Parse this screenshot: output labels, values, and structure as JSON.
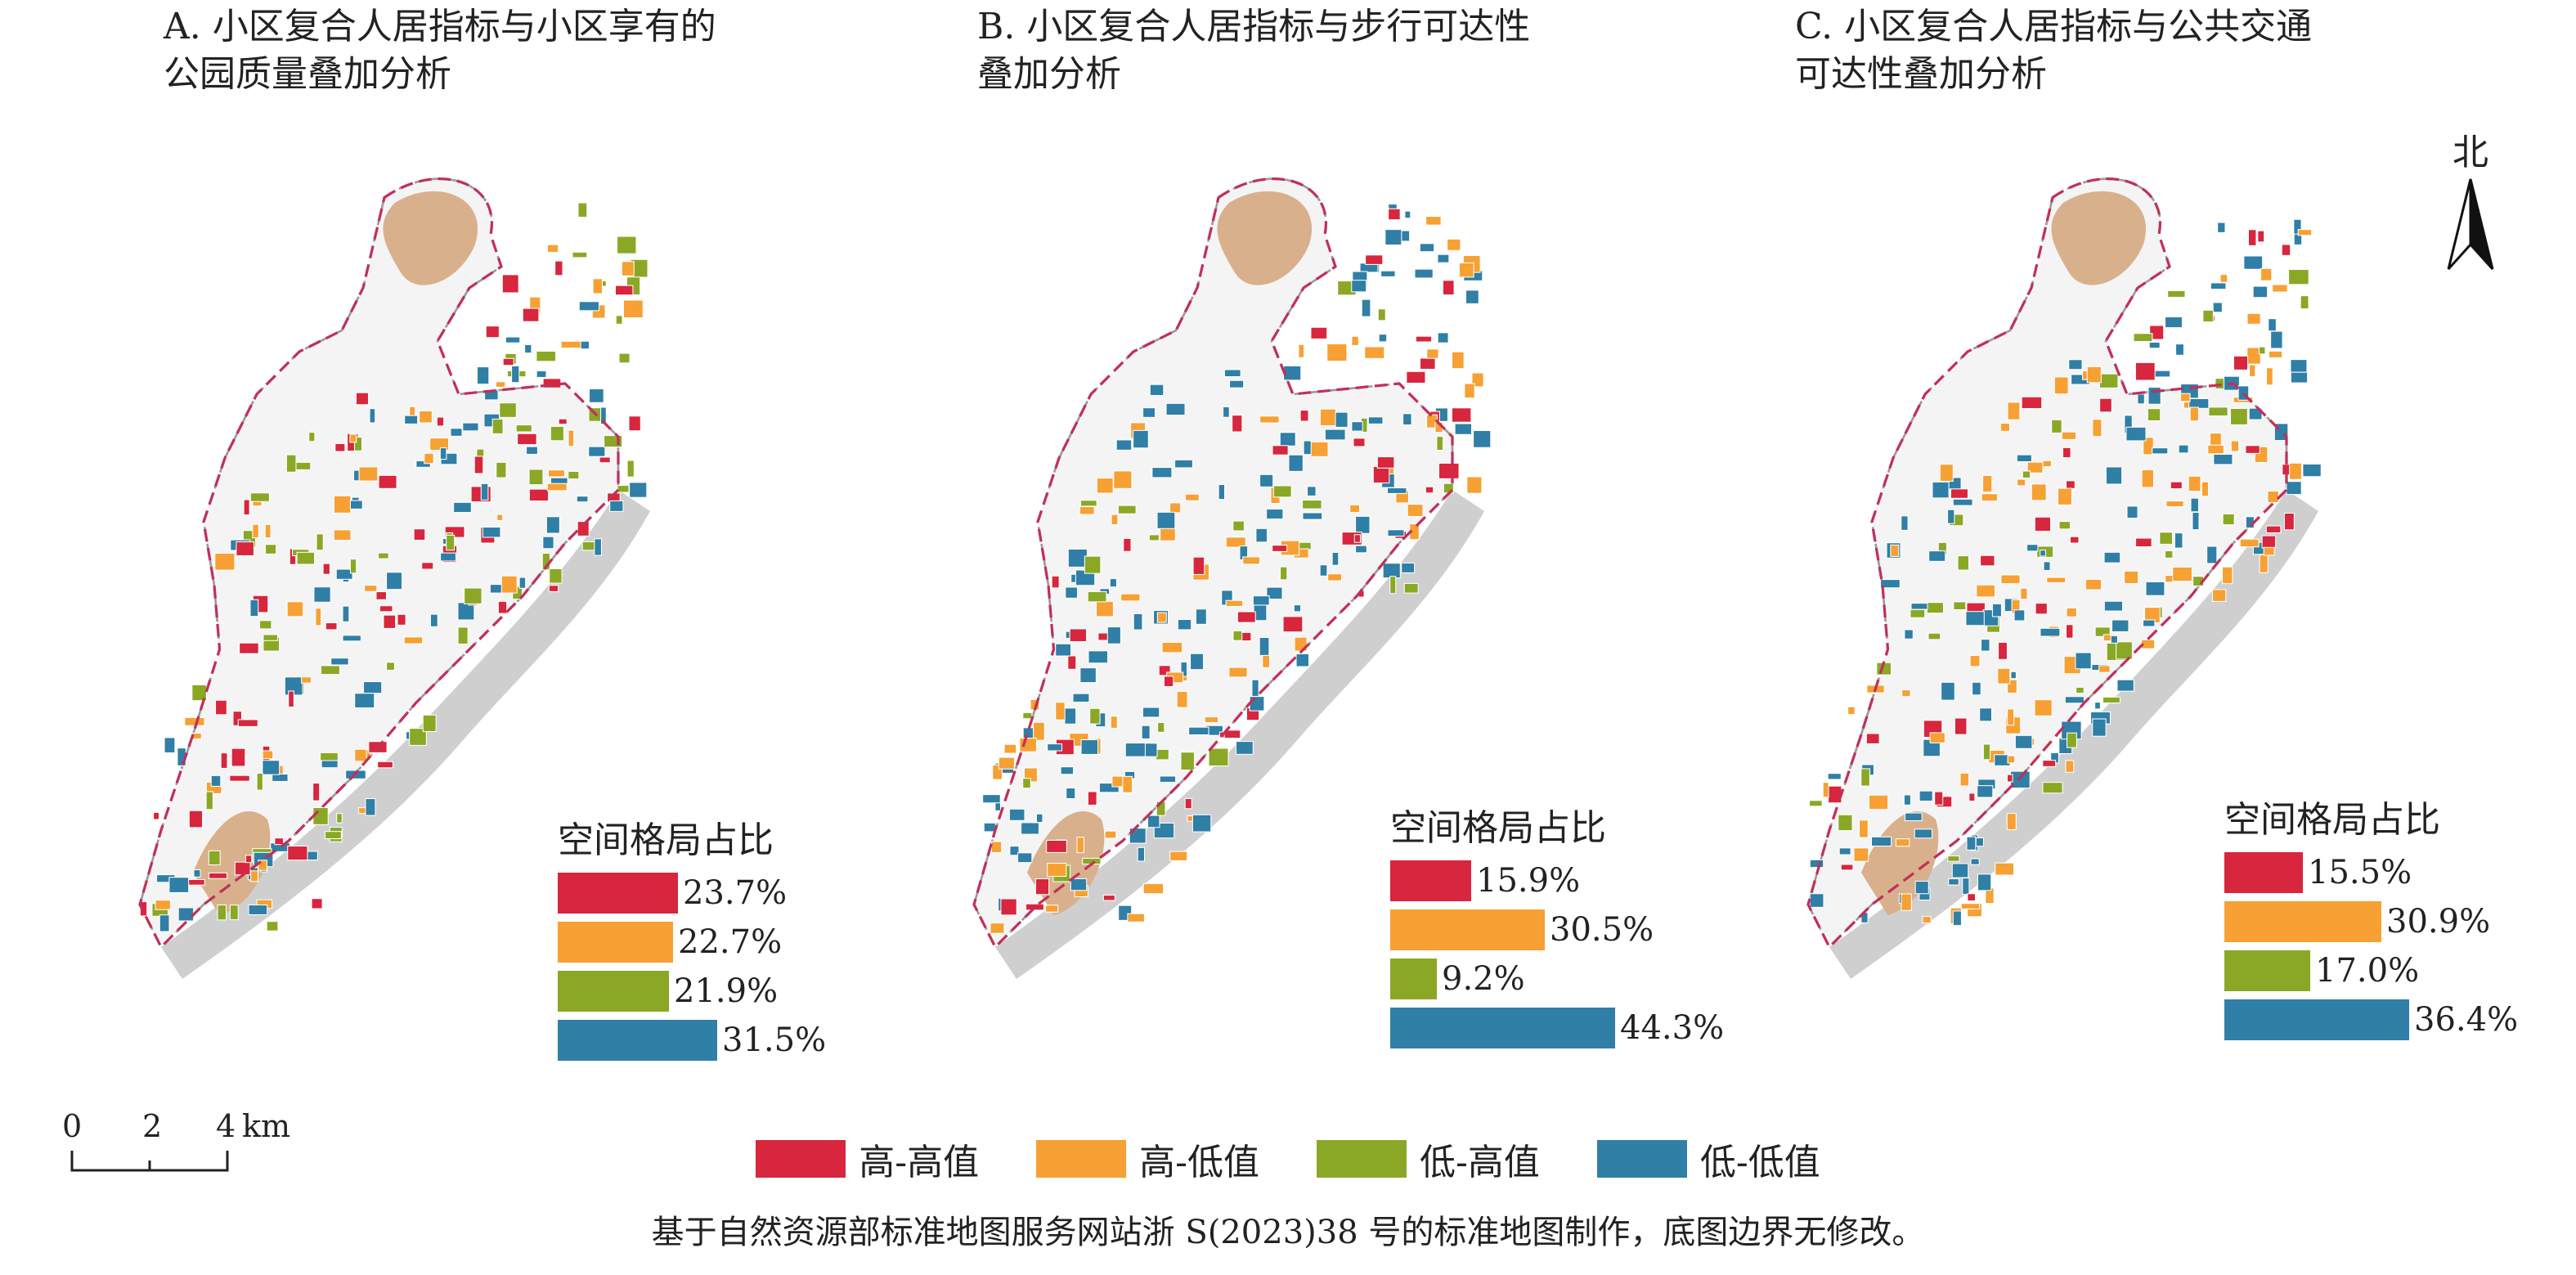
{
  "colors": {
    "high_high": "#d7263d",
    "high_low": "#f7a033",
    "low_high": "#8aa825",
    "low_low": "#2f7fa6",
    "park": "#d9b08c",
    "boundary": "#c0305a",
    "buffer": "#cfcfcf"
  },
  "panels": [
    {
      "title": "A. 小区复合人居指标与小区享有的\n公园质量叠加分析",
      "legend_title": "空间格局占比",
      "shares": [
        {
          "label": "23.7%",
          "value": 23.7,
          "color_key": "high_high"
        },
        {
          "label": "22.7%",
          "value": 22.7,
          "color_key": "high_low"
        },
        {
          "label": "21.9%",
          "value": 21.9,
          "color_key": "low_high"
        },
        {
          "label": "31.5%",
          "value": 31.5,
          "color_key": "low_low"
        }
      ]
    },
    {
      "title": "B. 小区复合人居指标与步行可达性\n叠加分析",
      "legend_title": "空间格局占比",
      "shares": [
        {
          "label": "15.9%",
          "value": 15.9,
          "color_key": "high_high"
        },
        {
          "label": "30.5%",
          "value": 30.5,
          "color_key": "high_low"
        },
        {
          "label": "9.2%",
          "value": 9.2,
          "color_key": "low_high"
        },
        {
          "label": "44.3%",
          "value": 44.3,
          "color_key": "low_low"
        }
      ]
    },
    {
      "title": "C. 小区复合人居指标与公共交通\n可达性叠加分析",
      "legend_title": "空间格局占比",
      "shares": [
        {
          "label": "15.5%",
          "value": 15.5,
          "color_key": "high_high"
        },
        {
          "label": "30.9%",
          "value": 30.9,
          "color_key": "high_low"
        },
        {
          "label": "17.0%",
          "value": 17.0,
          "color_key": "low_high"
        },
        {
          "label": "36.4%",
          "value": 36.4,
          "color_key": "low_low"
        }
      ]
    }
  ],
  "north_arrow": {
    "label": "北",
    "icon": "north-arrow-icon"
  },
  "scale_bar": {
    "ticks": [
      "0",
      "2",
      "4"
    ],
    "unit": "km"
  },
  "classes": [
    {
      "label": "高-高值",
      "color_key": "high_high"
    },
    {
      "label": "高-低值",
      "color_key": "high_low"
    },
    {
      "label": "低-高值",
      "color_key": "low_high"
    },
    {
      "label": "低-低值",
      "color_key": "low_low"
    }
  ],
  "footnote": "基于自然资源部标准地图服务网站浙 S(2023)38 号的标准地图制作，底图边界无修改。"
}
